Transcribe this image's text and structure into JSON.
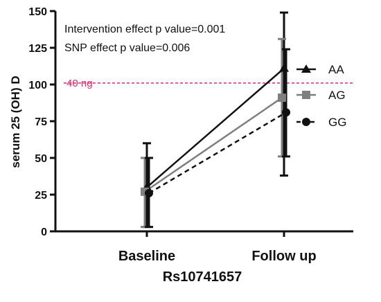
{
  "chart_data": {
    "type": "line",
    "title": "",
    "xlabel": "Rs10741657",
    "ylabel": "serum 25 (OH) D",
    "categories": [
      "Baseline",
      "Follow up"
    ],
    "ylim": [
      0,
      150
    ],
    "yticks": [
      0,
      25,
      50,
      75,
      100,
      125,
      150
    ],
    "grid": false,
    "legend_position": "right",
    "annotations": [
      "Intervention effect p value=0.001",
      "SNP effect p value=0.006"
    ],
    "reference_line": {
      "value": 101,
      "label": "40 ng",
      "color": "#e0286a"
    },
    "series": [
      {
        "name": "AA",
        "values": [
          30,
          111
        ],
        "error_low": [
          3,
          38
        ],
        "error_high": [
          60,
          149
        ],
        "color": "#111111",
        "marker": "triangle",
        "line_style": "solid"
      },
      {
        "name": "AG",
        "values": [
          27,
          91
        ],
        "error_low": [
          3,
          51
        ],
        "error_high": [
          50,
          131
        ],
        "color": "#7f7f7f",
        "marker": "square",
        "line_style": "solid"
      },
      {
        "name": "GG",
        "values": [
          26,
          81
        ],
        "error_low": [
          3,
          51
        ],
        "error_high": [
          50,
          124
        ],
        "color": "#111111",
        "marker": "circle",
        "line_style": "dashed"
      }
    ]
  }
}
